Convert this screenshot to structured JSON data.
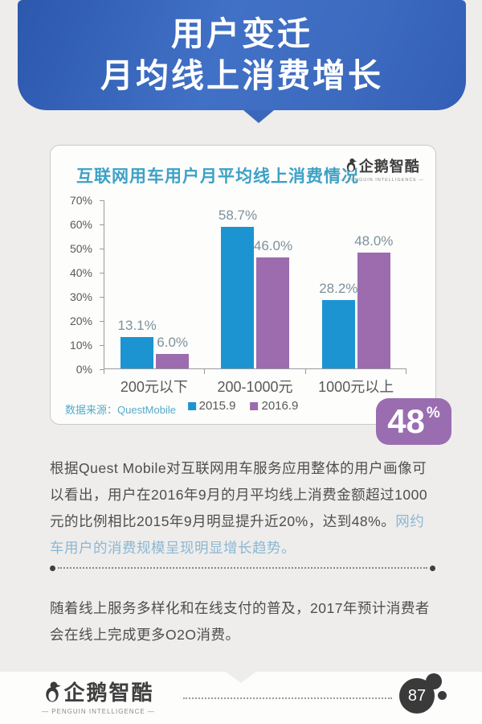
{
  "header": {
    "title_line1": "用户变迁",
    "title_line2": "月均线上消费增长"
  },
  "brand": {
    "name": "企鹅智酷",
    "caption": "— PENGUIN INTELLIGENCE —"
  },
  "card": {
    "title": "互联网用车用户月平均线上消费情况",
    "source_label": "数据来源：QuestMobile"
  },
  "chart_data": {
    "type": "bar",
    "title": "互联网用车用户月平均线上消费情况",
    "categories": [
      "200元以下",
      "200-1000元",
      "1000元以上"
    ],
    "series": [
      {
        "name": "2015.9",
        "color": "#1b94d1",
        "values": [
          13.1,
          58.7,
          28.2
        ]
      },
      {
        "name": "2016.9",
        "color": "#9c6cae",
        "values": [
          6.0,
          46.0,
          48.0
        ]
      }
    ],
    "value_labels": [
      [
        "13.1%",
        "58.7%",
        "28.2%"
      ],
      [
        "6.0%",
        "46.0%",
        "48.0%"
      ]
    ],
    "xlabel": "",
    "ylabel": "",
    "ylim": [
      0,
      70
    ],
    "ytick_step": 10,
    "yticks": [
      "70%",
      "60%",
      "50%",
      "40%",
      "30%",
      "20%",
      "10%",
      "0%"
    ],
    "grid": false,
    "legend_position": "bottom",
    "source": "QuestMobile"
  },
  "badge": {
    "value": "48",
    "unit": "%"
  },
  "paragraphs": {
    "p1_normal": "根据Quest Mobile对互联网用车服务应用整体的用户画像可以看出，用户在2016年9月的月平均线上消费金额超过1000元的比例相比2015年9月明显提升近20%，达到48%。",
    "p1_highlight": "网约车用户的消费规模呈现明显增长趋势。",
    "p2": "随着线上服务多样化和在线支付的普及，2017年预计消费者会在线上完成更多O2O消费。"
  },
  "footer": {
    "page_number": "87"
  }
}
